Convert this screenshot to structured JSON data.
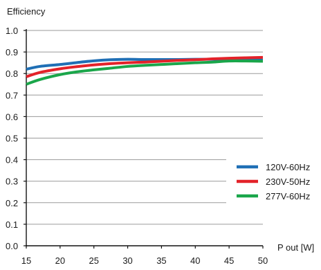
{
  "chart_data": {
    "type": "line",
    "ylabel": "Efficiency",
    "xlabel": "P out [W]",
    "xlim": [
      15,
      50
    ],
    "ylim": [
      0.0,
      1.0
    ],
    "x_ticks": [
      15,
      20,
      25,
      30,
      35,
      40,
      45,
      50
    ],
    "y_ticks": [
      0.0,
      0.1,
      0.2,
      0.3,
      0.4,
      0.5,
      0.6,
      0.7,
      0.8,
      0.9,
      1.0
    ],
    "y_tick_labels": [
      "0.0",
      "0.1",
      "0.2",
      "0.3",
      "0.4",
      "0.5",
      "0.6",
      "0.7",
      "0.8",
      "0.9",
      "1.0"
    ],
    "x_tick_labels": [
      "15",
      "20",
      "25",
      "30",
      "35",
      "40",
      "45",
      "50"
    ],
    "grid": "horizontal",
    "legend_position": "right",
    "series": [
      {
        "name": "120V-60Hz",
        "color": "#1f6fb5",
        "x": [
          15,
          17,
          20,
          22.5,
          25,
          27.5,
          30,
          32.5,
          35,
          37.5,
          40,
          42.5,
          45,
          47.5,
          50
        ],
        "y": [
          0.82,
          0.833,
          0.842,
          0.851,
          0.859,
          0.864,
          0.866,
          0.865,
          0.865,
          0.865,
          0.866,
          0.866,
          0.865,
          0.863,
          0.862
        ]
      },
      {
        "name": "230V-50Hz",
        "color": "#e32229",
        "x": [
          15,
          17,
          20,
          22.5,
          25,
          27.5,
          30,
          32.5,
          35,
          37.5,
          40,
          42.5,
          45,
          47.5,
          50
        ],
        "y": [
          0.785,
          0.805,
          0.822,
          0.832,
          0.84,
          0.846,
          0.85,
          0.853,
          0.857,
          0.861,
          0.864,
          0.868,
          0.871,
          0.873,
          0.875
        ]
      },
      {
        "name": "277V-60Hz",
        "color": "#1aa64a",
        "x": [
          15,
          17,
          20,
          22.5,
          25,
          27.5,
          30,
          32.5,
          35,
          37.5,
          40,
          42.5,
          45,
          47.5,
          50
        ],
        "y": [
          0.75,
          0.772,
          0.795,
          0.808,
          0.817,
          0.825,
          0.833,
          0.838,
          0.842,
          0.846,
          0.85,
          0.853,
          0.858,
          0.858,
          0.857
        ]
      }
    ]
  }
}
